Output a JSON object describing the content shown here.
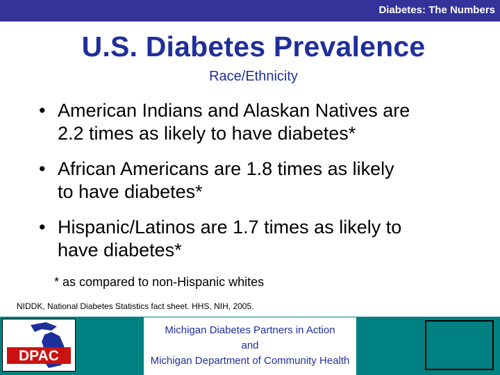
{
  "header": {
    "section_label": "Diabetes: The Numbers"
  },
  "slide": {
    "title": "U.S. Diabetes Prevalence",
    "subtitle": "Race/Ethnicity",
    "bullets": [
      {
        "symbol": "•",
        "line1": "American Indians and Alaskan Natives are",
        "line2": "2.2 times as likely to have diabetes*"
      },
      {
        "symbol": "•",
        "line1": "African Americans are 1.8 times as likely",
        "line2": "to have diabetes*"
      },
      {
        "symbol": "•",
        "line1": "Hispanic/Latinos are 1.7 times as likely to",
        "line2": "have diabetes*"
      }
    ],
    "footnote": "* as compared to non-Hispanic whites",
    "source": "NIDDK, National Diabetes Statistics fact sheet. HHS, NIH, 2005."
  },
  "footer": {
    "logo_text": "DPAC",
    "line1": "Michigan Diabetes Partners in Action",
    "line2": "and",
    "line3": "Michigan Department of Community Health"
  },
  "colors": {
    "bar": "#333399",
    "title": "#1f2f9a",
    "footer": "#008080",
    "logo_red": "#cc1111",
    "logo_blue": "#1f2f9a"
  }
}
